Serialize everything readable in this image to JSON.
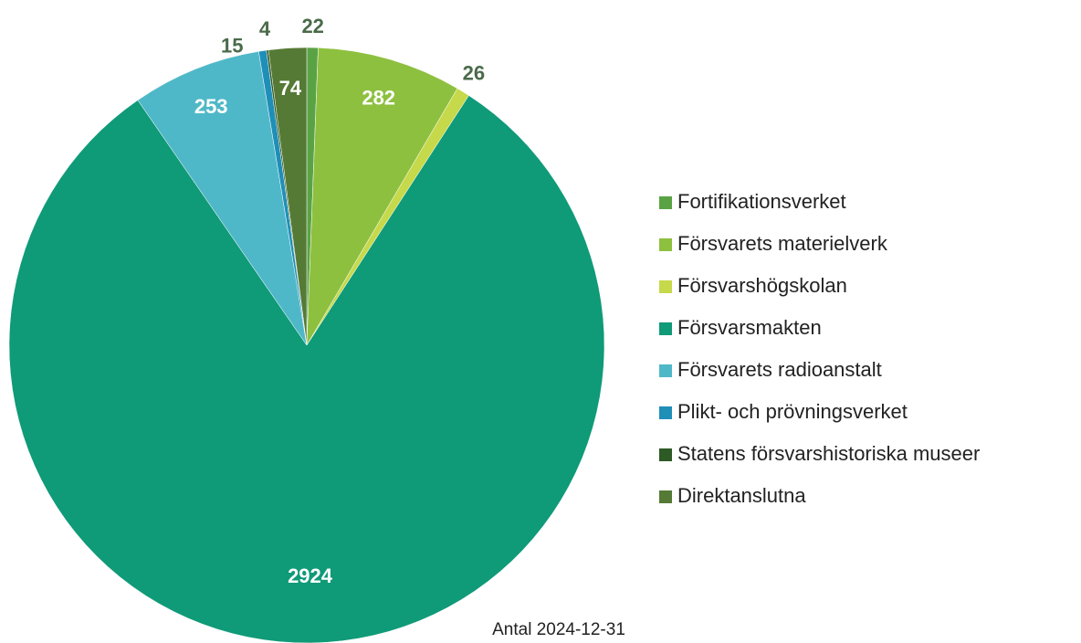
{
  "chart_data": {
    "type": "pie",
    "caption": "Antal 2024-12-31",
    "categories": [
      "Fortifikationsverket",
      "Försvarets materielverk",
      "Försvarshögskolan",
      "Försvarsmakten",
      "Försvarets radioanstalt",
      "Plikt- och prövningsverket",
      "Statens försvarshistoriska museer",
      "Direktanslutna"
    ],
    "values": [
      22,
      282,
      26,
      2924,
      253,
      15,
      4,
      74
    ],
    "colors": [
      "#5aa345",
      "#8dc03f",
      "#c6d94a",
      "#0f9a78",
      "#4fb8c8",
      "#1f8fb8",
      "#2e5a25",
      "#557a35"
    ],
    "legend": "right"
  }
}
